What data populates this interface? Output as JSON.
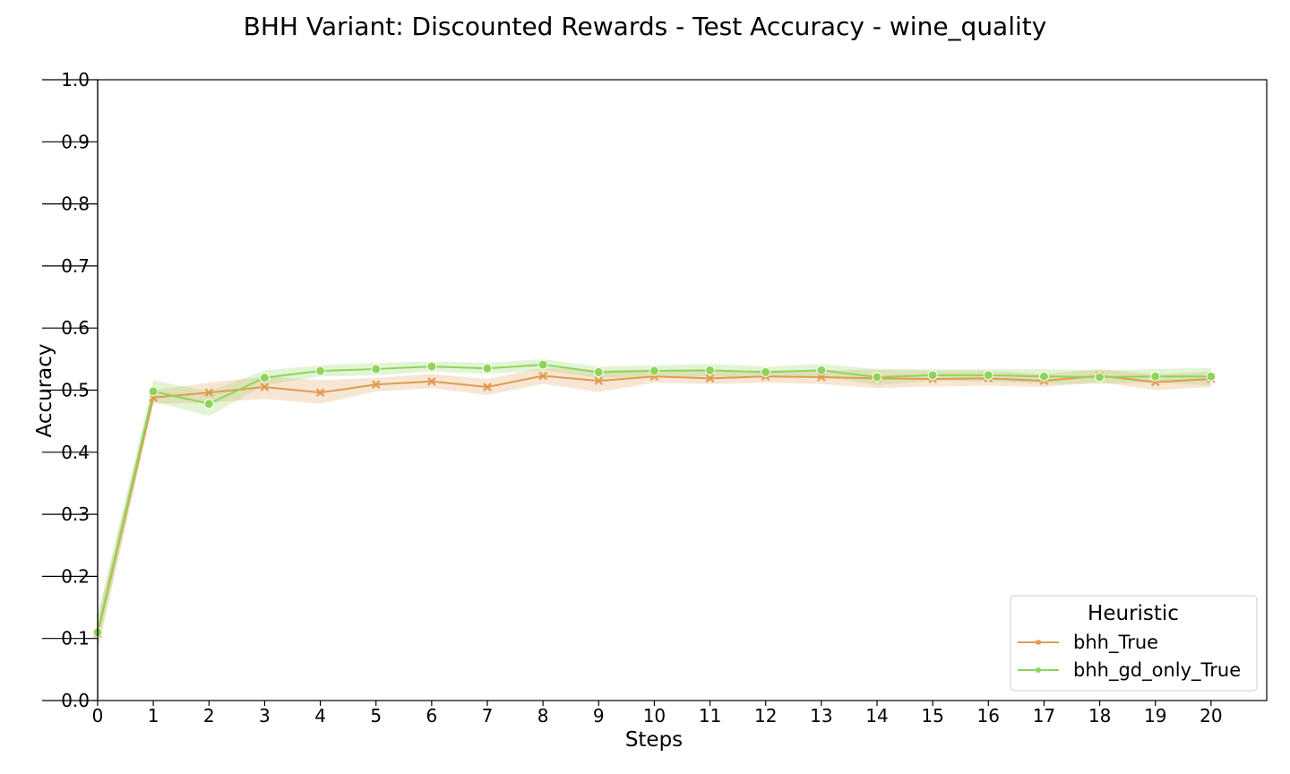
{
  "chart_data": {
    "type": "line",
    "title": "BHH Variant: Discounted Rewards - Test Accuracy - wine_quality",
    "xlabel": "Steps",
    "ylabel": "Accuracy",
    "xlim": [
      0,
      21
    ],
    "ylim": [
      0.0,
      1.0
    ],
    "x_ticks": [
      0,
      1,
      2,
      3,
      4,
      5,
      6,
      7,
      8,
      9,
      10,
      11,
      12,
      13,
      14,
      15,
      16,
      17,
      18,
      19,
      20
    ],
    "y_ticks": [
      0.0,
      0.1,
      0.2,
      0.3,
      0.4,
      0.5,
      0.6,
      0.7,
      0.8,
      0.9,
      1.0
    ],
    "y_tick_labels": [
      "0.0",
      "0.1",
      "0.2",
      "0.3",
      "0.4",
      "0.5",
      "0.6",
      "0.7",
      "0.8",
      "0.9",
      "1.0"
    ],
    "grid": false,
    "legend": {
      "title": "Heuristic",
      "position": "bottom-right"
    },
    "x": [
      0,
      1,
      2,
      3,
      4,
      5,
      6,
      7,
      8,
      9,
      10,
      11,
      12,
      13,
      14,
      15,
      16,
      17,
      18,
      19,
      20
    ],
    "series": [
      {
        "name": "bhh_True",
        "color": "#e09b4f",
        "marker": "x",
        "values": [
          0.108,
          0.488,
          0.496,
          0.505,
          0.496,
          0.509,
          0.514,
          0.505,
          0.523,
          0.515,
          0.522,
          0.519,
          0.522,
          0.521,
          0.519,
          0.518,
          0.519,
          0.515,
          0.523,
          0.513,
          0.518
        ],
        "lower": [
          0.08,
          0.478,
          0.48,
          0.486,
          0.478,
          0.498,
          0.503,
          0.492,
          0.51,
          0.497,
          0.512,
          0.51,
          0.512,
          0.51,
          0.503,
          0.506,
          0.507,
          0.505,
          0.513,
          0.5,
          0.505
        ],
        "upper": [
          0.136,
          0.5,
          0.512,
          0.522,
          0.516,
          0.52,
          0.526,
          0.518,
          0.536,
          0.532,
          0.533,
          0.53,
          0.532,
          0.532,
          0.533,
          0.531,
          0.531,
          0.526,
          0.534,
          0.525,
          0.53
        ]
      },
      {
        "name": "bhh_gd_only_True",
        "color": "#8fd45a",
        "marker": "o",
        "values": [
          0.11,
          0.498,
          0.478,
          0.52,
          0.531,
          0.534,
          0.538,
          0.535,
          0.541,
          0.529,
          0.531,
          0.532,
          0.529,
          0.532,
          0.521,
          0.524,
          0.524,
          0.522,
          0.521,
          0.522,
          0.522
        ],
        "lower": [
          0.085,
          0.482,
          0.458,
          0.508,
          0.522,
          0.524,
          0.53,
          0.526,
          0.532,
          0.52,
          0.522,
          0.522,
          0.52,
          0.522,
          0.508,
          0.515,
          0.514,
          0.51,
          0.51,
          0.512,
          0.508
        ],
        "upper": [
          0.135,
          0.516,
          0.498,
          0.532,
          0.54,
          0.544,
          0.546,
          0.544,
          0.55,
          0.538,
          0.54,
          0.542,
          0.538,
          0.542,
          0.534,
          0.534,
          0.534,
          0.534,
          0.532,
          0.534,
          0.536
        ]
      }
    ]
  }
}
